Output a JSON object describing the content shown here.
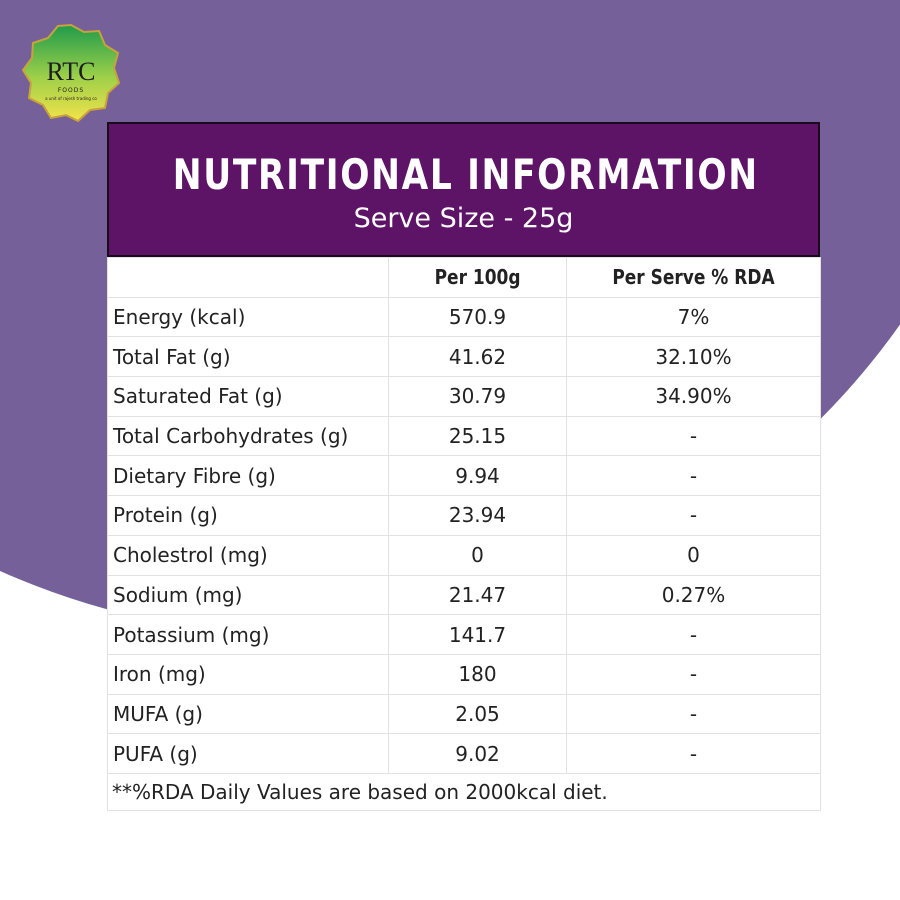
{
  "logo": {
    "name": "RTC",
    "sub": "FOODS",
    "tagline": "a unit of rajesh trading co"
  },
  "header": {
    "title": "NUTRITIONAL INFORMATION",
    "subtitle": "Serve Size - 25g"
  },
  "table": {
    "columns": [
      "Per 100g",
      "Per Serve % RDA"
    ],
    "rows": [
      [
        "Energy (kcal)",
        "570.9",
        "7%"
      ],
      [
        "Total Fat (g)",
        "41.62",
        "32.10%"
      ],
      [
        "Saturated Fat (g)",
        "30.79",
        "34.90%"
      ],
      [
        "Total Carbohydrates (g)",
        "25.15",
        "-"
      ],
      [
        "Dietary Fibre (g)",
        "9.94",
        "-"
      ],
      [
        "Protein (g)",
        "23.94",
        "-"
      ],
      [
        "Cholestrol (mg)",
        "0",
        "0"
      ],
      [
        "Sodium (mg)",
        "21.47",
        "0.27%"
      ],
      [
        "Potassium (mg)",
        "141.7",
        "-"
      ],
      [
        "Iron (mg)",
        "180",
        "-"
      ],
      [
        "MUFA (g)",
        "2.05",
        "-"
      ],
      [
        "PUFA (g)",
        "9.02",
        "-"
      ]
    ]
  },
  "footnote": "**%RDA Daily Values are based on 2000kcal diet."
}
